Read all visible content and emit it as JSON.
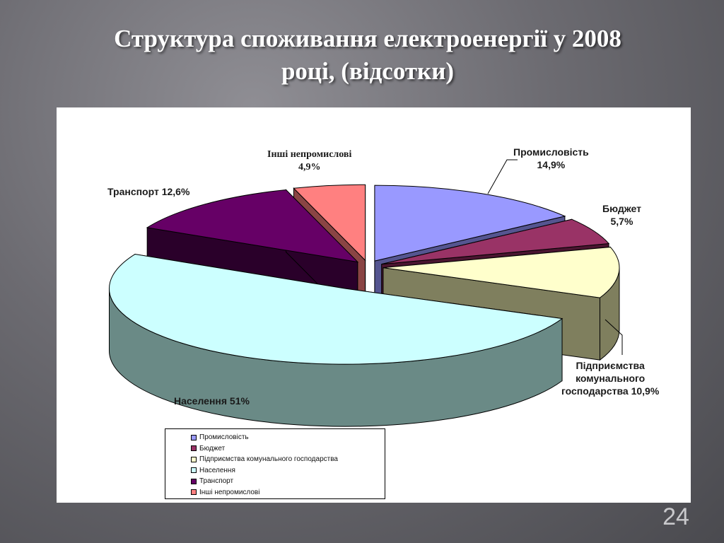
{
  "slide": {
    "title_line1": "Структура споживання електроенергії у 2008",
    "title_line2": "році, (відсотки)",
    "page_number": "24"
  },
  "chart_data": {
    "type": "pie",
    "style": "3d-exploded",
    "title": "",
    "legend_position": "bottom-left",
    "slices": [
      {
        "name": "Промисловість",
        "value": 14.9,
        "color": "#9999ff",
        "side_color": "#555590"
      },
      {
        "name": "Бюджет",
        "value": 5.7,
        "color": "#993366",
        "side_color": "#4a1530"
      },
      {
        "name": "Підприємства комунального господарства",
        "value": 10.9,
        "color": "#ffffcc",
        "side_color": "#7f7f5e"
      },
      {
        "name": "Населення",
        "value": 51,
        "color": "#ccffff",
        "side_color": "#6a8a86"
      },
      {
        "name": "Транспорт",
        "value": 12.6,
        "color": "#660066",
        "side_color": "#2a002a"
      },
      {
        "name": "Інші непромислові",
        "value": 4.9,
        "color": "#ff8080",
        "side_color": "#8a4444"
      }
    ],
    "data_labels": {
      "industry": [
        "Промисловість",
        "14,9%"
      ],
      "budget": [
        "Бюджет",
        "5,7%"
      ],
      "communal": [
        "Підприємства",
        "комунального",
        "господарства 10,9%"
      ],
      "population": "Населення 51%",
      "transport": "Транспорт 12,6%",
      "other": [
        "Інші непромислові",
        "4,9%"
      ]
    },
    "legend": [
      "Промисловість",
      "Бюджет",
      "Підприємства комунального господарства",
      "Населення",
      "Транспорт",
      "Інші непромислові"
    ]
  }
}
